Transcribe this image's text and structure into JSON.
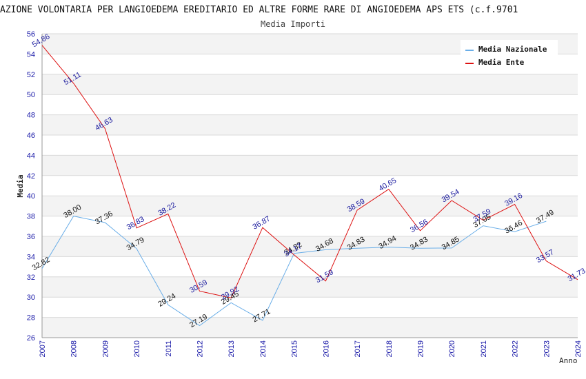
{
  "chart_data": {
    "type": "line",
    "title": "AZIONE VOLONTARIA PER LANGIOEDEMA EREDITARIO ED ALTRE FORME RARE DI ANGIOEDEMA APS ETS (c.f.9701",
    "subtitle": "Media Importi",
    "xlabel": "Anno",
    "ylabel": "Media",
    "ylim": [
      26,
      56
    ],
    "y_ticks": [
      "26",
      "28",
      "30",
      "32",
      "34",
      "36",
      "38",
      "40",
      "42",
      "44",
      "46",
      "48",
      "50",
      "52",
      "54",
      "56"
    ],
    "categories": [
      "2007",
      "2008",
      "2009",
      "2010",
      "2011",
      "2012",
      "2013",
      "2014",
      "2015",
      "2016",
      "2017",
      "2018",
      "2019",
      "2020",
      "2021",
      "2022",
      "2023",
      "2024"
    ],
    "legend_position": "top-right",
    "series": [
      {
        "name": "Media Nazionale",
        "color": "#6aaee8",
        "values": [
          32.82,
          38.0,
          37.36,
          34.79,
          29.24,
          27.19,
          29.45,
          27.71,
          34.32,
          34.68,
          34.83,
          34.94,
          34.83,
          34.85,
          37.05,
          36.46,
          37.49,
          null
        ],
        "labels": [
          "32.82",
          "38.00",
          "37.36",
          "34.79",
          "29.24",
          "27.19",
          "29.45",
          "27.71",
          "34.32",
          "34.68",
          "34.83",
          "34.94",
          "34.83",
          "34.85",
          "37.05",
          "36.46",
          "37.49",
          ""
        ]
      },
      {
        "name": "Media Ente",
        "color": "#dd1111",
        "values": [
          54.86,
          51.11,
          46.63,
          36.83,
          38.22,
          30.59,
          29.92,
          36.87,
          34.17,
          31.59,
          38.59,
          40.65,
          36.56,
          39.54,
          37.59,
          39.16,
          33.57,
          31.73
        ],
        "labels": [
          "54.86",
          "51.11",
          "46.63",
          "36.83",
          "38.22",
          "30.59",
          "29.92",
          "36.87",
          "34.17",
          "31.59",
          "38.59",
          "40.65",
          "36.56",
          "39.54",
          "37.59",
          "39.16",
          "33.57",
          "31.73"
        ]
      }
    ]
  }
}
